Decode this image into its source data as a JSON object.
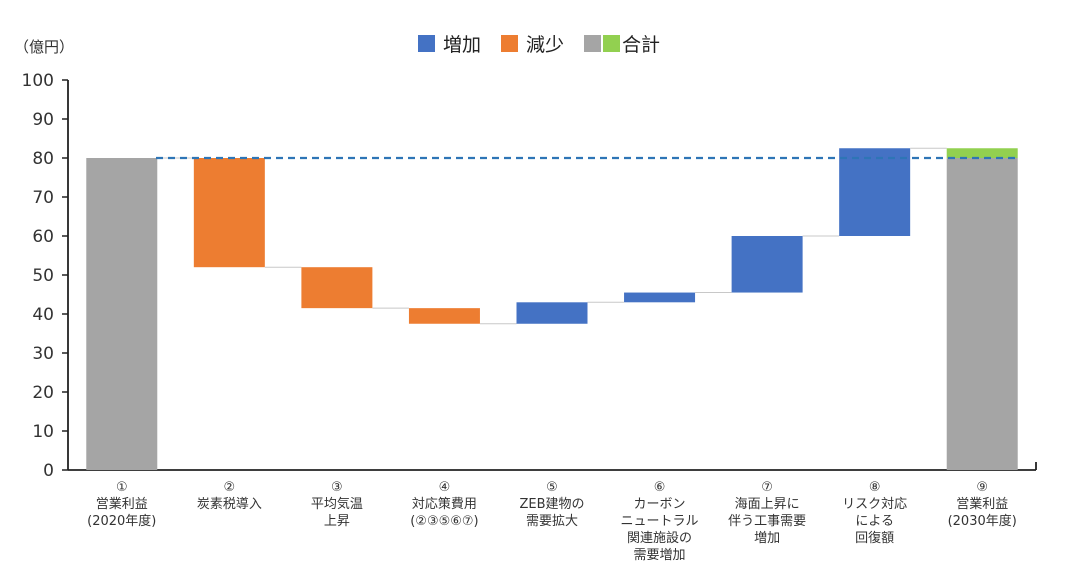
{
  "chart_data": {
    "type": "waterfall",
    "unit_label": "（億円）",
    "ylim": [
      0,
      100
    ],
    "yticks": [
      "0",
      "10",
      "20",
      "30",
      "40",
      "50",
      "60",
      "70",
      "80",
      "90",
      "100"
    ],
    "reference_line": 80,
    "legend": {
      "increase": "増加",
      "decrease": "減少",
      "total": "合計"
    },
    "colors": {
      "increase": "#4472C4",
      "decrease": "#ED7D31",
      "total": "#A5A5A5",
      "total_delta": "#92D050",
      "reference_line": "#2E75B6"
    },
    "bars": [
      {
        "label": [
          "①",
          "営業利益",
          "(2020年度)"
        ],
        "kind": "total",
        "start": 0,
        "end": 80
      },
      {
        "label": [
          "②",
          "炭素税導入"
        ],
        "kind": "decrease",
        "start": 80,
        "end": 52
      },
      {
        "label": [
          "③",
          "平均気温",
          "上昇"
        ],
        "kind": "decrease",
        "start": 52,
        "end": 41.5
      },
      {
        "label": [
          "④",
          "対応策費用",
          "(②③⑤⑥⑦)"
        ],
        "kind": "decrease",
        "start": 41.5,
        "end": 37.5
      },
      {
        "label": [
          "⑤",
          "ZEB建物の",
          "需要拡大"
        ],
        "kind": "increase",
        "start": 37.5,
        "end": 43
      },
      {
        "label": [
          "⑥",
          "カーボン",
          "ニュートラル",
          "関連施設の",
          "需要増加"
        ],
        "kind": "increase",
        "start": 43,
        "end": 45.5
      },
      {
        "label": [
          "⑦",
          "海面上昇に",
          "伴う工事需要",
          "増加"
        ],
        "kind": "increase",
        "start": 45.5,
        "end": 60
      },
      {
        "label": [
          "⑧",
          "リスク対応",
          "による",
          "回復額"
        ],
        "kind": "increase",
        "start": 60,
        "end": 82.5
      },
      {
        "label": [
          "⑨",
          "営業利益",
          "(2030年度)"
        ],
        "kind": "total",
        "start": 0,
        "end": 80,
        "delta": 2.5
      }
    ]
  }
}
